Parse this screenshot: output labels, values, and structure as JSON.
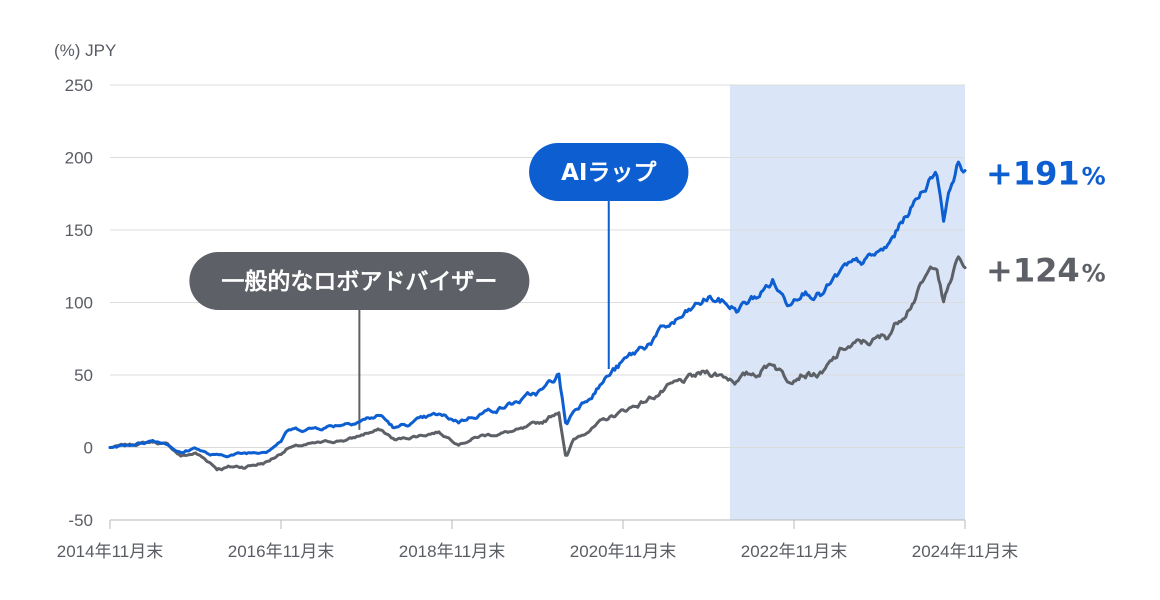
{
  "chart_data": {
    "type": "line",
    "unit_label": "(%) JPY",
    "ylim": [
      -50,
      250
    ],
    "y_ticks": [
      250,
      200,
      150,
      100,
      50,
      0,
      -50
    ],
    "x_range": [
      "2014-11",
      "2024-11"
    ],
    "x_ticks": [
      {
        "date": "2014-11",
        "label": "2014年11月末"
      },
      {
        "date": "2016-11",
        "label": "2016年11月末"
      },
      {
        "date": "2018-11",
        "label": "2018年11月末"
      },
      {
        "date": "2020-11",
        "label": "2020年11月末"
      },
      {
        "date": "2022-11",
        "label": "2022年11月末"
      },
      {
        "date": "2024-11",
        "label": "2024年11月末"
      }
    ],
    "highlight_range": [
      "2022-02",
      "2024-11"
    ],
    "highlight_color": "#dae6f7",
    "grid": true,
    "series": [
      {
        "name": "AIラップ",
        "color": "#0c5ed1",
        "end_value": "+191",
        "end_unit": "%",
        "points": [
          [
            "2014-11",
            0
          ],
          [
            "2015-02",
            2
          ],
          [
            "2015-05",
            5
          ],
          [
            "2015-07",
            3
          ],
          [
            "2015-09",
            -4
          ],
          [
            "2015-11",
            0
          ],
          [
            "2016-01",
            -5
          ],
          [
            "2016-02",
            -6
          ],
          [
            "2016-06",
            -4
          ],
          [
            "2016-09",
            -2
          ],
          [
            "2016-11",
            5
          ],
          [
            "2016-12",
            12
          ],
          [
            "2017-03",
            13
          ],
          [
            "2017-06",
            15
          ],
          [
            "2017-09",
            18
          ],
          [
            "2017-11",
            20
          ],
          [
            "2018-01",
            22
          ],
          [
            "2018-03",
            13
          ],
          [
            "2018-06",
            18
          ],
          [
            "2018-09",
            22
          ],
          [
            "2018-12",
            18
          ],
          [
            "2019-03",
            24
          ],
          [
            "2019-06",
            28
          ],
          [
            "2019-09",
            33
          ],
          [
            "2019-12",
            40
          ],
          [
            "2020-02",
            50
          ],
          [
            "2020-03",
            15
          ],
          [
            "2020-04",
            25
          ],
          [
            "2020-06",
            35
          ],
          [
            "2020-09",
            50
          ],
          [
            "2020-11",
            58
          ],
          [
            "2021-02",
            70
          ],
          [
            "2021-05",
            82
          ],
          [
            "2021-08",
            92
          ],
          [
            "2021-11",
            103
          ],
          [
            "2022-01",
            100
          ],
          [
            "2022-03",
            95
          ],
          [
            "2022-06",
            105
          ],
          [
            "2022-08",
            115
          ],
          [
            "2022-10",
            100
          ],
          [
            "2022-12",
            110
          ],
          [
            "2023-03",
            106
          ],
          [
            "2023-06",
            122
          ],
          [
            "2023-09",
            128
          ],
          [
            "2023-12",
            137
          ],
          [
            "2024-03",
            162
          ],
          [
            "2024-06",
            185
          ],
          [
            "2024-07",
            192
          ],
          [
            "2024-08",
            160
          ],
          [
            "2024-09",
            180
          ],
          [
            "2024-10",
            197
          ],
          [
            "2024-11",
            191
          ]
        ]
      },
      {
        "name": "一般的なロボアドバイザー",
        "color": "#5d6066",
        "end_value": "+124",
        "end_unit": "%",
        "points": [
          [
            "2014-11",
            0
          ],
          [
            "2015-02",
            2
          ],
          [
            "2015-05",
            4
          ],
          [
            "2015-07",
            2
          ],
          [
            "2015-09",
            -6
          ],
          [
            "2015-11",
            -4
          ],
          [
            "2016-01",
            -10
          ],
          [
            "2016-02",
            -14
          ],
          [
            "2016-06",
            -13
          ],
          [
            "2016-09",
            -10
          ],
          [
            "2016-11",
            -4
          ],
          [
            "2016-12",
            0
          ],
          [
            "2017-03",
            2
          ],
          [
            "2017-06",
            4
          ],
          [
            "2017-09",
            6
          ],
          [
            "2017-11",
            10
          ],
          [
            "2018-01",
            12
          ],
          [
            "2018-03",
            5
          ],
          [
            "2018-06",
            8
          ],
          [
            "2018-09",
            11
          ],
          [
            "2018-12",
            3
          ],
          [
            "2019-03",
            8
          ],
          [
            "2019-06",
            10
          ],
          [
            "2019-09",
            12
          ],
          [
            "2019-12",
            18
          ],
          [
            "2020-02",
            26
          ],
          [
            "2020-03",
            -8
          ],
          [
            "2020-04",
            5
          ],
          [
            "2020-06",
            12
          ],
          [
            "2020-09",
            20
          ],
          [
            "2020-11",
            25
          ],
          [
            "2021-02",
            32
          ],
          [
            "2021-05",
            40
          ],
          [
            "2021-08",
            46
          ],
          [
            "2021-11",
            52
          ],
          [
            "2022-01",
            50
          ],
          [
            "2022-03",
            47
          ],
          [
            "2022-06",
            52
          ],
          [
            "2022-08",
            60
          ],
          [
            "2022-10",
            48
          ],
          [
            "2022-12",
            53
          ],
          [
            "2023-03",
            50
          ],
          [
            "2023-06",
            68
          ],
          [
            "2023-09",
            72
          ],
          [
            "2023-12",
            76
          ],
          [
            "2024-03",
            98
          ],
          [
            "2024-06",
            120
          ],
          [
            "2024-07",
            128
          ],
          [
            "2024-08",
            100
          ],
          [
            "2024-09",
            115
          ],
          [
            "2024-10",
            130
          ],
          [
            "2024-11",
            124
          ]
        ]
      }
    ],
    "annotations": [
      {
        "text": "AIラップ",
        "series": 0,
        "anchor_date": "2020-09",
        "style": "pill-blue"
      },
      {
        "text": "一般的なロボアドバイザー",
        "series": 1,
        "anchor_date": "2017-10",
        "style": "pill-gray"
      }
    ]
  }
}
